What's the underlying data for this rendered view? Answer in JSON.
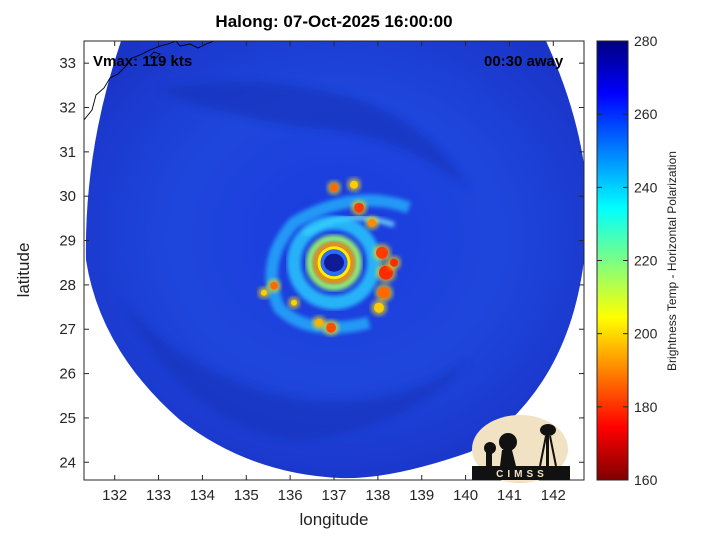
{
  "chart_data": {
    "type": "heatmap",
    "title": "Halong: 07-Oct-2025 16:00:00",
    "xlabel": "longitude",
    "ylabel": "latitude",
    "xlim": [
      131.3,
      142.7
    ],
    "ylim": [
      23.6,
      33.5
    ],
    "xticks": [
      132,
      133,
      134,
      135,
      136,
      137,
      138,
      139,
      140,
      141,
      142
    ],
    "yticks": [
      24,
      25,
      26,
      27,
      28,
      29,
      30,
      31,
      32,
      33
    ],
    "storm_center": {
      "lon": 137.0,
      "lat": 28.5
    },
    "vmax_text": "Vmax: 119 kts",
    "time_offset_text": "00:30 away",
    "colorbar": {
      "label": "Brightness Temp - Horizontal Polarization",
      "range": [
        160,
        280
      ],
      "ticks": [
        160,
        180,
        200,
        220,
        240,
        260,
        280
      ],
      "colormap": "jet"
    },
    "grid": false,
    "logo_text": "CIMSS"
  },
  "colors": {
    "background_out_of_swath": "#ffffff",
    "swath_base": "#1e3fd8",
    "coastline": "#000000",
    "eye": "#101c96",
    "eyewall": "#ff2a00"
  }
}
